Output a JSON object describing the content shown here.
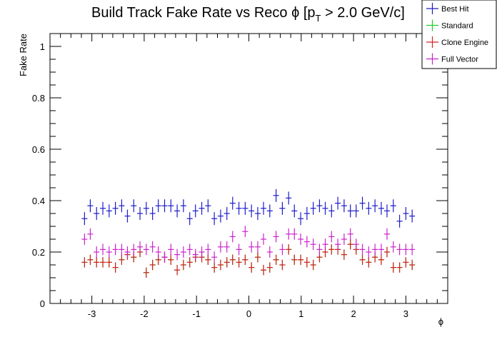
{
  "chart_data": {
    "type": "scatter",
    "title": "Build Track Fake Rate vs Reco ϕ [p",
    "title_sub": "T",
    "title_tail": " > 2.0 GeV/c]",
    "xlabel": "ϕ",
    "ylabel": "Fake Rate",
    "xlim": [
      -3.8,
      3.8
    ],
    "ylim": [
      0,
      1.05
    ],
    "x_ticks": [
      -3,
      -2,
      -1,
      0,
      1,
      2,
      3
    ],
    "x_tick_labels": [
      "-3",
      "-2",
      "-1",
      "0",
      "1",
      "2",
      "3"
    ],
    "y_ticks": [
      0,
      0.2,
      0.4,
      0.6,
      0.8,
      1
    ],
    "y_tick_labels": [
      "0",
      "0.2",
      "0.4",
      "0.6",
      "0.8",
      "1"
    ],
    "legend_position": "top-right",
    "x_centers": [
      -3.14,
      -3.03,
      -2.91,
      -2.79,
      -2.67,
      -2.55,
      -2.43,
      -2.32,
      -2.2,
      -2.08,
      -1.96,
      -1.84,
      -1.73,
      -1.61,
      -1.49,
      -1.37,
      -1.25,
      -1.13,
      -1.02,
      -0.9,
      -0.78,
      -0.66,
      -0.54,
      -0.42,
      -0.31,
      -0.19,
      -0.07,
      0.05,
      0.17,
      0.28,
      0.4,
      0.52,
      0.64,
      0.76,
      0.87,
      0.99,
      1.11,
      1.23,
      1.35,
      1.46,
      1.58,
      1.7,
      1.82,
      1.94,
      2.05,
      2.17,
      2.29,
      2.41,
      2.53,
      2.64,
      2.76,
      2.88,
      3.0,
      3.12
    ],
    "x_half_width": 0.055,
    "series": [
      {
        "name": "Best Hit",
        "color": "#1c1ccc",
        "err": 0.025,
        "values": [
          0.33,
          0.38,
          0.35,
          0.37,
          0.36,
          0.37,
          0.38,
          0.34,
          0.38,
          0.35,
          0.37,
          0.35,
          0.38,
          0.38,
          0.38,
          0.36,
          0.38,
          0.33,
          0.36,
          0.37,
          0.38,
          0.33,
          0.34,
          0.35,
          0.39,
          0.37,
          0.37,
          0.36,
          0.35,
          0.37,
          0.36,
          0.42,
          0.37,
          0.41,
          0.36,
          0.33,
          0.35,
          0.37,
          0.38,
          0.37,
          0.36,
          0.39,
          0.38,
          0.36,
          0.36,
          0.39,
          0.37,
          0.38,
          0.37,
          0.36,
          0.38,
          0.32,
          0.35,
          0.34
        ]
      },
      {
        "name": "Standard",
        "color": "#1fcc1f",
        "err": 0.02,
        "values": [
          0.16,
          0.17,
          0.16,
          0.16,
          0.16,
          0.14,
          0.17,
          0.19,
          0.18,
          0.2,
          0.12,
          0.15,
          0.17,
          0.18,
          0.17,
          0.13,
          0.15,
          0.16,
          0.18,
          0.18,
          0.17,
          0.14,
          0.15,
          0.16,
          0.17,
          0.16,
          0.17,
          0.14,
          0.18,
          0.13,
          0.14,
          0.17,
          0.15,
          0.21,
          0.17,
          0.17,
          0.16,
          0.15,
          0.18,
          0.2,
          0.21,
          0.21,
          0.19,
          0.23,
          0.21,
          0.17,
          0.16,
          0.18,
          0.17,
          0.2,
          0.14,
          0.14,
          0.16,
          0.15
        ]
      },
      {
        "name": "Clone Engine",
        "color": "#d42222",
        "err": 0.02,
        "values": [
          0.16,
          0.17,
          0.16,
          0.16,
          0.16,
          0.14,
          0.17,
          0.19,
          0.18,
          0.2,
          0.12,
          0.15,
          0.17,
          0.18,
          0.17,
          0.13,
          0.15,
          0.16,
          0.18,
          0.18,
          0.17,
          0.14,
          0.15,
          0.16,
          0.17,
          0.16,
          0.17,
          0.14,
          0.18,
          0.13,
          0.14,
          0.17,
          0.15,
          0.21,
          0.17,
          0.17,
          0.16,
          0.15,
          0.18,
          0.2,
          0.21,
          0.21,
          0.19,
          0.23,
          0.21,
          0.17,
          0.16,
          0.18,
          0.17,
          0.2,
          0.14,
          0.14,
          0.16,
          0.15
        ]
      },
      {
        "name": "Full Vector",
        "color": "#cc22cc",
        "err": 0.022,
        "values": [
          0.25,
          0.27,
          0.2,
          0.21,
          0.2,
          0.21,
          0.21,
          0.2,
          0.21,
          0.22,
          0.21,
          0.22,
          0.2,
          0.18,
          0.21,
          0.19,
          0.2,
          0.21,
          0.19,
          0.2,
          0.21,
          0.18,
          0.22,
          0.22,
          0.26,
          0.21,
          0.28,
          0.22,
          0.22,
          0.25,
          0.2,
          0.26,
          0.21,
          0.27,
          0.27,
          0.25,
          0.24,
          0.23,
          0.21,
          0.23,
          0.26,
          0.23,
          0.25,
          0.27,
          0.23,
          0.21,
          0.2,
          0.21,
          0.21,
          0.27,
          0.22,
          0.21,
          0.21,
          0.21
        ]
      }
    ]
  }
}
